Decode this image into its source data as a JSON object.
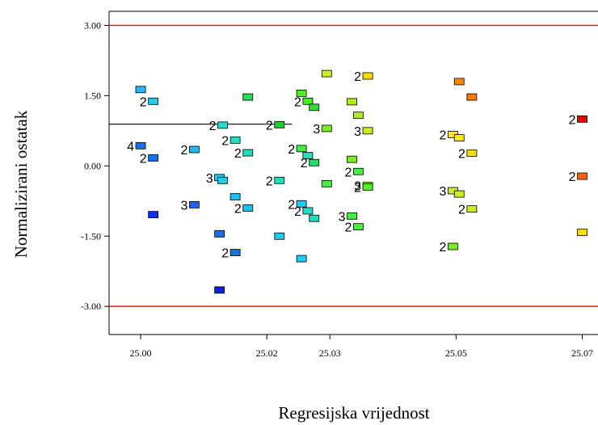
{
  "chart_data": {
    "type": "scatter",
    "title": "",
    "xlabel": "Regresijska vrijednost",
    "ylabel": "Normalizirani ostatak",
    "xlim": [
      24.995,
      25.0725
    ],
    "ylim": [
      -3.6,
      3.3
    ],
    "xticks": [
      25.0,
      25.02,
      25.03,
      25.05,
      25.07
    ],
    "xtick_labels": [
      "25.00",
      "25.02",
      "25.03",
      "25.05",
      "25.07"
    ],
    "yticks": [
      3.0,
      1.5,
      0.0,
      -1.5,
      -3.0
    ],
    "ytick_labels": [
      "3.00",
      "1.50",
      "0.00",
      "-1.50",
      "-3.00"
    ],
    "grid": false,
    "reference_lines": [
      {
        "y": 3.0,
        "color": "#ff0000"
      },
      {
        "y": -3.0,
        "color": "#ff0000"
      }
    ],
    "marker_segment": {
      "x_from": 24.995,
      "x_to": 25.024,
      "y": 0.89,
      "color": "#000000"
    },
    "points": [
      {
        "x": 25.0,
        "y": 1.63,
        "count": "",
        "color": "#22bbf0"
      },
      {
        "x": 25.002,
        "y": 1.38,
        "count": "2",
        "color": "#22ccf0"
      },
      {
        "x": 25.0,
        "y": 0.43,
        "count": "4",
        "color": "#1870e8"
      },
      {
        "x": 25.002,
        "y": 0.17,
        "count": "2",
        "color": "#1870e8"
      },
      {
        "x": 25.002,
        "y": -1.04,
        "count": "",
        "color": "#0d34e0"
      },
      {
        "x": 25.0085,
        "y": 0.35,
        "count": "2",
        "color": "#22bbf0"
      },
      {
        "x": 25.0085,
        "y": -0.83,
        "count": "3",
        "color": "#1a66e8"
      },
      {
        "x": 25.0125,
        "y": -0.25,
        "count": "3",
        "color": "#22ccf0"
      },
      {
        "x": 25.013,
        "y": -0.31,
        "count": "",
        "color": "#22ccf0"
      },
      {
        "x": 25.0125,
        "y": -1.45,
        "count": "",
        "color": "#1870e8"
      },
      {
        "x": 25.0125,
        "y": -2.65,
        "count": "",
        "color": "#0d20d8"
      },
      {
        "x": 25.013,
        "y": 0.87,
        "count": "2",
        "color": "#22ddcc"
      },
      {
        "x": 25.015,
        "y": 0.55,
        "count": "2",
        "color": "#22ddcc"
      },
      {
        "x": 25.017,
        "y": 0.28,
        "count": "2",
        "color": "#22ddbb"
      },
      {
        "x": 25.015,
        "y": -0.66,
        "count": "",
        "color": "#22bbf0"
      },
      {
        "x": 25.017,
        "y": -0.9,
        "count": "2",
        "color": "#22bbf0"
      },
      {
        "x": 25.015,
        "y": -1.85,
        "count": "2",
        "color": "#1870e8"
      },
      {
        "x": 25.017,
        "y": 1.47,
        "count": "",
        "color": "#22dd55"
      },
      {
        "x": 25.022,
        "y": 0.88,
        "count": "2",
        "color": "#22cc33"
      },
      {
        "x": 25.022,
        "y": -0.31,
        "count": "2",
        "color": "#22ddbb"
      },
      {
        "x": 25.022,
        "y": -1.5,
        "count": "",
        "color": "#22ccf0"
      },
      {
        "x": 25.0255,
        "y": 1.55,
        "count": "",
        "color": "#55ee22"
      },
      {
        "x": 25.0265,
        "y": 1.38,
        "count": "2",
        "color": "#44ee22"
      },
      {
        "x": 25.0275,
        "y": 1.25,
        "count": "",
        "color": "#33dd33"
      },
      {
        "x": 25.0255,
        "y": 0.37,
        "count": "2",
        "color": "#44ee44"
      },
      {
        "x": 25.0265,
        "y": 0.22,
        "count": "",
        "color": "#22ddbb"
      },
      {
        "x": 25.0275,
        "y": 0.07,
        "count": "2",
        "color": "#22dd66"
      },
      {
        "x": 25.0255,
        "y": -0.81,
        "count": "2",
        "color": "#22ccf0"
      },
      {
        "x": 25.0265,
        "y": -0.96,
        "count": "2",
        "color": "#22ddcc"
      },
      {
        "x": 25.0275,
        "y": -1.12,
        "count": "",
        "color": "#22ddbb"
      },
      {
        "x": 25.0255,
        "y": -1.98,
        "count": "",
        "color": "#22ccf0"
      },
      {
        "x": 25.0295,
        "y": 1.97,
        "count": "",
        "color": "#ccee22"
      },
      {
        "x": 25.0295,
        "y": 0.8,
        "count": "3",
        "color": "#77ee22"
      },
      {
        "x": 25.0295,
        "y": -0.38,
        "count": "",
        "color": "#44ee44"
      },
      {
        "x": 25.0335,
        "y": 1.37,
        "count": "",
        "color": "#aaee22"
      },
      {
        "x": 25.0345,
        "y": 1.08,
        "count": "",
        "color": "#aaee22"
      },
      {
        "x": 25.0335,
        "y": 0.14,
        "count": "",
        "color": "#77ee22"
      },
      {
        "x": 25.0345,
        "y": -0.12,
        "count": "2",
        "color": "#44ee44"
      },
      {
        "x": 25.0335,
        "y": -1.07,
        "count": "3",
        "color": "#44ee44"
      },
      {
        "x": 25.0345,
        "y": -1.3,
        "count": "2",
        "color": "#44ee44"
      },
      {
        "x": 25.036,
        "y": 1.92,
        "count": "2",
        "color": "#ffdd00"
      },
      {
        "x": 25.036,
        "y": 0.75,
        "count": "3",
        "color": "#ccee22"
      },
      {
        "x": 25.036,
        "y": -0.42,
        "count": "3",
        "color": "#77ee22"
      },
      {
        "x": 25.036,
        "y": -0.45,
        "count": "2",
        "color": "#55ee22"
      },
      {
        "x": 25.0505,
        "y": 1.8,
        "count": "",
        "color": "#ff8800"
      },
      {
        "x": 25.0525,
        "y": 1.47,
        "count": "",
        "color": "#ff7700"
      },
      {
        "x": 25.0495,
        "y": 0.67,
        "count": "2",
        "color": "#ffee00"
      },
      {
        "x": 25.0505,
        "y": 0.6,
        "count": "",
        "color": "#ffee00"
      },
      {
        "x": 25.0525,
        "y": 0.27,
        "count": "2",
        "color": "#ffdd00"
      },
      {
        "x": 25.0495,
        "y": -0.53,
        "count": "3",
        "color": "#ccee22"
      },
      {
        "x": 25.0505,
        "y": -0.6,
        "count": "",
        "color": "#ccee22"
      },
      {
        "x": 25.0525,
        "y": -0.92,
        "count": "2",
        "color": "#ccee22"
      },
      {
        "x": 25.0495,
        "y": -1.72,
        "count": "2",
        "color": "#77ee22"
      },
      {
        "x": 25.07,
        "y": 1.0,
        "count": "2",
        "color": "#ee0000"
      },
      {
        "x": 25.07,
        "y": -0.22,
        "count": "2",
        "color": "#ff6600"
      },
      {
        "x": 25.07,
        "y": -1.42,
        "count": "",
        "color": "#ffdd00"
      }
    ]
  }
}
